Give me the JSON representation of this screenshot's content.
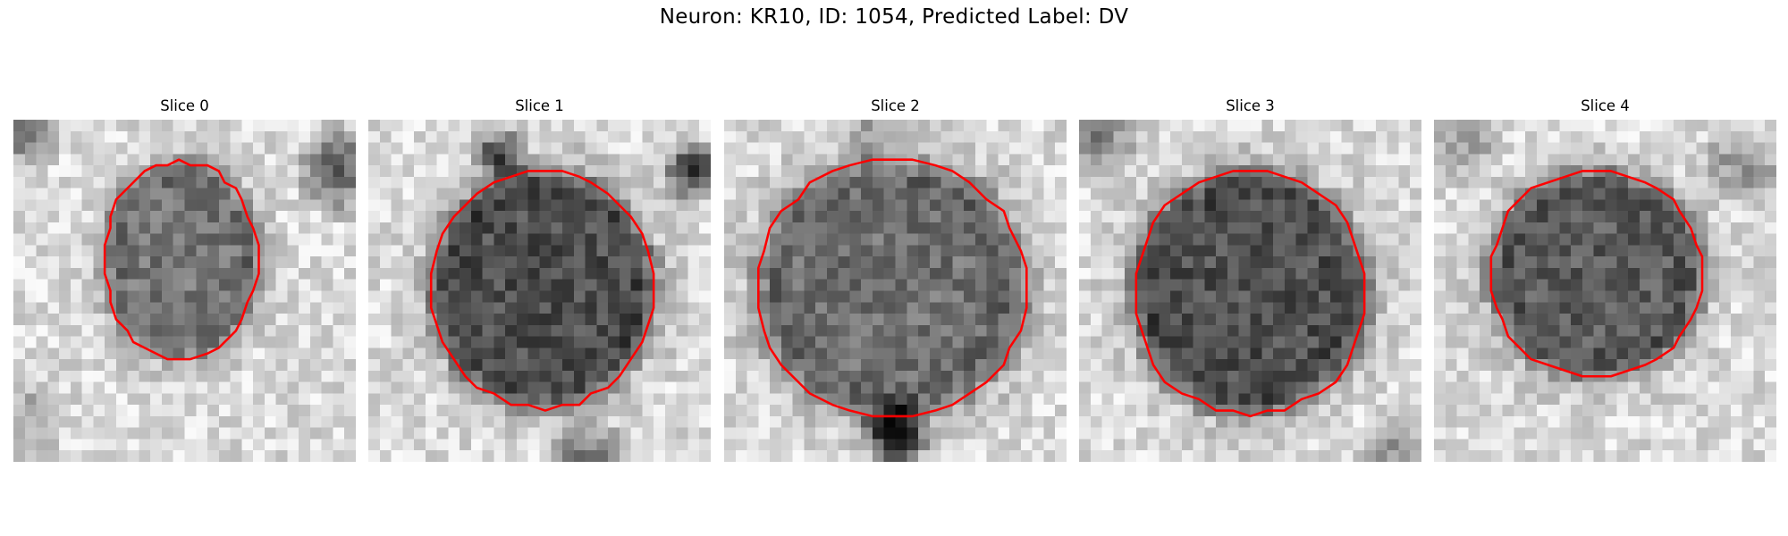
{
  "figure": {
    "title": "Neuron: KR10, ID: 1054, Predicted Label: DV",
    "colormap": "gray",
    "contour_color": "#ff0000",
    "image_grid_size": 30
  },
  "slices": [
    {
      "title": "Slice 0"
    },
    {
      "title": "Slice 1"
    },
    {
      "title": "Slice 2"
    },
    {
      "title": "Slice 3"
    },
    {
      "title": "Slice 4"
    }
  ]
}
